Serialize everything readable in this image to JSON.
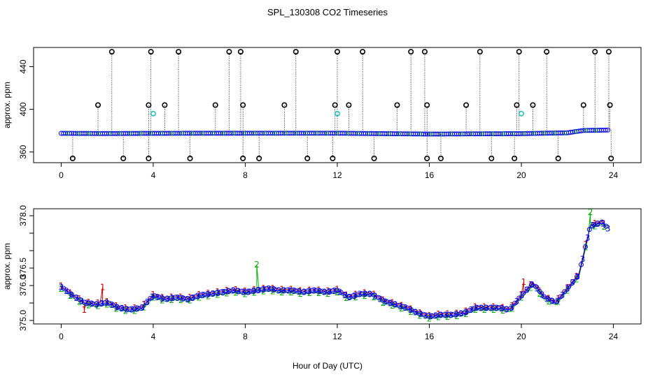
{
  "title": "SPL_130308  CO2 Timeseries",
  "xlabel": "Hour of Day (UTC)",
  "colors": {
    "series1": "#d40000",
    "series2": "#00b000",
    "series3": "#0000ee",
    "outlier": "#000000",
    "highlight": "#00c0c0"
  },
  "chart_data": [
    {
      "type": "scatter",
      "ylabel": "approx. ppm",
      "xlim": [
        -1.2,
        25.2
      ],
      "ylim": [
        350,
        458
      ],
      "xticks": [
        0,
        4,
        8,
        12,
        16,
        20,
        24
      ],
      "yticks": [
        360,
        400,
        440
      ],
      "baseline": [
        [
          0,
          377.5
        ],
        [
          2,
          377.3
        ],
        [
          4,
          377.5
        ],
        [
          8,
          377.6
        ],
        [
          12,
          377.6
        ],
        [
          16,
          376.8
        ],
        [
          20,
          377.2
        ],
        [
          22,
          378.0
        ],
        [
          22.7,
          380.2
        ],
        [
          23.8,
          380.6
        ]
      ],
      "outliers_high": [
        1.6,
        2.2,
        3.8,
        3.9,
        4.5,
        5.1,
        6.7,
        7.3,
        7.8,
        7.9,
        9.7,
        10.2,
        11.9,
        12.0,
        12.5,
        13.1,
        14.6,
        15.2,
        15.8,
        15.9,
        17.6,
        18.2,
        19.8,
        19.9,
        20.5,
        21.1,
        22.7,
        23.2,
        23.8,
        23.85
      ],
      "outliers_high_values": [
        404,
        454,
        404,
        454,
        404,
        454,
        404,
        454,
        454,
        404,
        404,
        454,
        404,
        454,
        404,
        454,
        404,
        454,
        454,
        404,
        404,
        454,
        404,
        454,
        404,
        454,
        404,
        454,
        454,
        404
      ],
      "outliers_low": [
        0.5,
        2.7,
        3.8,
        5.6,
        7.9,
        8.6,
        10.7,
        11.8,
        13.6,
        15.9,
        16.5,
        18.7,
        19.7,
        21.6,
        23.9
      ],
      "outliers_low_value": 354,
      "highlights": [
        {
          "x": 4.0,
          "y": 396
        },
        {
          "x": 12.0,
          "y": 396
        },
        {
          "x": 20.0,
          "y": 396
        }
      ]
    },
    {
      "type": "line",
      "ylabel": "approx. ppm",
      "xlim": [
        -1.2,
        25.2
      ],
      "ylim": [
        374.9,
        378.2
      ],
      "xticks": [
        0,
        4,
        8,
        12,
        16,
        20,
        24
      ],
      "yticks": [
        375.0,
        375.5,
        376.0,
        376.5,
        377.0,
        377.5,
        378.0
      ],
      "yticklabels": [
        "375.0",
        "",
        "376.0",
        "376.5",
        "",
        "",
        "378.0"
      ],
      "x": [
        0,
        0.5,
        1,
        1.5,
        2,
        2.5,
        3,
        3.5,
        4,
        4.5,
        5,
        5.5,
        6,
        6.5,
        7,
        7.5,
        8,
        8.5,
        9,
        9.5,
        10,
        10.5,
        11,
        11.5,
        12,
        12.5,
        13,
        13.5,
        14,
        14.5,
        15,
        15.5,
        16,
        16.5,
        17,
        17.5,
        18,
        18.5,
        19,
        19.5,
        20,
        20.5,
        21,
        21.5,
        22,
        22.5,
        23,
        23.5,
        23.8
      ],
      "y": [
        375.95,
        375.7,
        375.5,
        375.45,
        375.5,
        375.35,
        375.3,
        375.35,
        375.7,
        375.6,
        375.65,
        375.6,
        375.7,
        375.75,
        375.8,
        375.85,
        375.8,
        375.85,
        375.9,
        375.85,
        375.85,
        375.8,
        375.85,
        375.8,
        375.85,
        375.65,
        375.75,
        375.75,
        375.55,
        375.45,
        375.35,
        375.2,
        375.1,
        375.15,
        375.15,
        375.2,
        375.35,
        375.35,
        375.35,
        375.3,
        375.7,
        376.05,
        375.65,
        375.5,
        375.9,
        376.3,
        377.7,
        377.8,
        377.6
      ],
      "series": [
        {
          "name": "1",
          "offset": 0.04,
          "spikes": [
            {
              "x": 1.8,
              "y": 375.95
            },
            {
              "x": 1.0,
              "y": 375.3
            },
            {
              "x": 20.1,
              "y": 376.1
            }
          ]
        },
        {
          "name": "2",
          "offset": -0.05,
          "spikes": [
            {
              "x": 8.5,
              "y": 376.6
            },
            {
              "x": 23.0,
              "y": 378.1
            }
          ]
        },
        {
          "name": "3",
          "offset": 0.0,
          "spikes": []
        }
      ]
    }
  ]
}
